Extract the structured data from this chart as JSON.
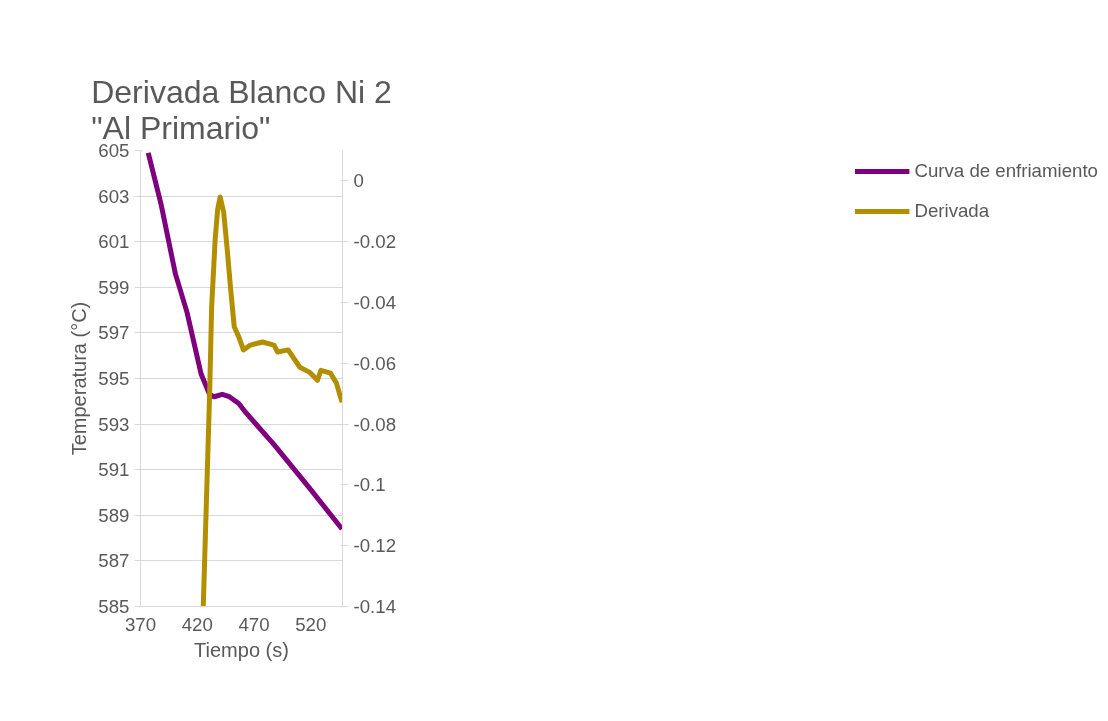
{
  "chart_data": {
    "type": "line",
    "title": "Derivada Blanco Ni 2\n\"Al Primario\"",
    "xlabel": "Tiempo (s)",
    "ylabel": "Temperatura (°C)",
    "xlim": [
      370,
      548
    ],
    "xticks": [
      370,
      420,
      470,
      520
    ],
    "ylim": [
      585,
      605
    ],
    "yticks": [
      585,
      587,
      589,
      591,
      593,
      595,
      597,
      599,
      601,
      603,
      605
    ],
    "y2lim": [
      -0.14,
      0.01
    ],
    "y2ticks": [
      -0.14,
      -0.12,
      {
        "value": -0.1,
        "label": "-0.1"
      },
      -0.08,
      -0.06,
      -0.04,
      -0.02,
      0
    ],
    "grid": "y",
    "legend": "right",
    "line_style": "solid",
    "marker": "none",
    "series": [
      {
        "name": "Curva de enfriamiento",
        "color": "#7f007f",
        "x": [
          376.8,
          388.3,
          400.7,
          411.0,
          423.4,
          430.9,
          434.9,
          442.0,
          448.3,
          456.6,
          462.9,
          487.7,
          518.8,
          547.6
        ],
        "values": [
          604.9,
          602.6,
          599.6,
          597.9,
          595.2,
          594.3,
          594.2,
          594.3,
          594.2,
          593.9,
          593.5,
          592.1,
          590.2,
          588.4
        ]
      },
      {
        "name": "Derivada",
        "color": "#b38f00",
        "axis": "y2",
        "x": [
          425.3,
          430.9,
          432.7,
          435.8,
          438.0,
          440.2,
          443.3,
          446.4,
          449.5,
          452.6,
          456.6,
          460.7,
          466.9,
          477.5,
          487.7,
          490.8,
          500.1,
          510.4,
          518.8,
          525.9,
          529.0,
          537.4,
          542.7,
          547.6
        ],
        "values": [
          -0.14,
          -0.0702,
          -0.0414,
          -0.0192,
          -0.0093,
          -0.0053,
          -0.0103,
          -0.0225,
          -0.0358,
          -0.048,
          -0.0513,
          -0.0556,
          -0.054,
          -0.053,
          -0.054,
          -0.0563,
          -0.0556,
          -0.0613,
          -0.0629,
          -0.0656,
          -0.0623,
          -0.0632,
          -0.0666,
          -0.0728
        ]
      }
    ]
  }
}
